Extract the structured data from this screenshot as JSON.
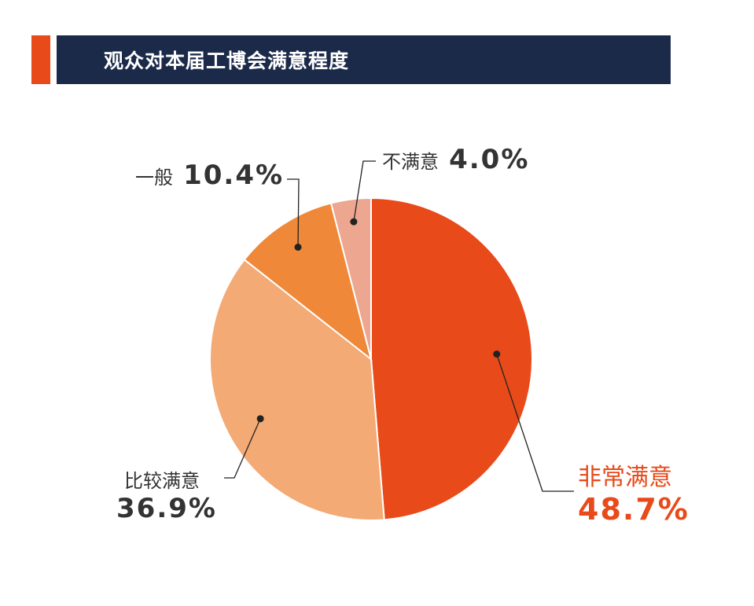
{
  "title": "观众对本届工博会满意程度",
  "colors": {
    "accent": "#e84a1a",
    "title_bar": "#1c2a4a",
    "text": "#333333",
    "leader": "#222222"
  },
  "chart_data": {
    "type": "pie",
    "title": "观众对本届工博会满意程度",
    "slices": [
      {
        "label": "非常满意",
        "value": 48.7,
        "display": "48.7%",
        "color": "#e84a1a"
      },
      {
        "label": "比较满意",
        "value": 36.9,
        "display": "36.9%",
        "color": "#f3aa74"
      },
      {
        "label": "一般",
        "value": 10.4,
        "display": "10.4%",
        "color": "#ef8838"
      },
      {
        "label": "不满意",
        "value": 4.0,
        "display": "4.0%",
        "color": "#eda690"
      }
    ],
    "start": "12 o'clock",
    "direction": "clockwise",
    "legend": "none",
    "labels": "outside with leader lines"
  }
}
